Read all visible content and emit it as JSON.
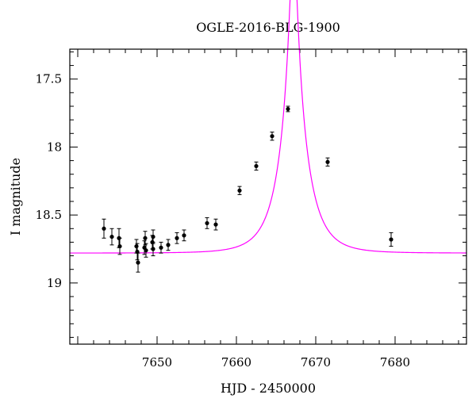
{
  "chart_data": {
    "type": "scatter",
    "title": "OGLE-2016-BLG-1900",
    "xlabel": "HJD - 2450000",
    "ylabel": "I magnitude",
    "xlim": [
      7639,
      7689
    ],
    "ylim": [
      19.45,
      17.28
    ],
    "y_inverted": true,
    "x_ticks": [
      7650,
      7660,
      7670,
      7680
    ],
    "y_ticks": [
      17.5,
      18,
      18.5,
      19
    ],
    "y_tick_labels": [
      "17.5",
      "18",
      "18.5",
      "19"
    ],
    "x_tick_labels": [
      "7650",
      "7660",
      "7670",
      "7680"
    ],
    "grid": false,
    "legend": "none",
    "colors": {
      "points": "#000000",
      "model": "#ff00ff"
    },
    "series": [
      {
        "kind": "points_with_errorbars",
        "points": [
          {
            "x": 7643.3,
            "y": 18.6,
            "err": 0.07
          },
          {
            "x": 7644.3,
            "y": 18.66,
            "err": 0.06
          },
          {
            "x": 7645.2,
            "y": 18.67,
            "err": 0.07
          },
          {
            "x": 7645.3,
            "y": 18.73,
            "err": 0.06
          },
          {
            "x": 7647.4,
            "y": 18.73,
            "err": 0.05
          },
          {
            "x": 7647.5,
            "y": 18.77,
            "err": 0.06
          },
          {
            "x": 7647.6,
            "y": 18.85,
            "err": 0.07
          },
          {
            "x": 7648.4,
            "y": 18.74,
            "err": 0.05
          },
          {
            "x": 7648.5,
            "y": 18.67,
            "err": 0.05
          },
          {
            "x": 7648.6,
            "y": 18.76,
            "err": 0.05
          },
          {
            "x": 7649.4,
            "y": 18.7,
            "err": 0.05
          },
          {
            "x": 7649.5,
            "y": 18.66,
            "err": 0.05
          },
          {
            "x": 7649.5,
            "y": 18.75,
            "err": 0.05
          },
          {
            "x": 7650.5,
            "y": 18.74,
            "err": 0.04
          },
          {
            "x": 7651.4,
            "y": 18.72,
            "err": 0.04
          },
          {
            "x": 7652.5,
            "y": 18.67,
            "err": 0.04
          },
          {
            "x": 7653.4,
            "y": 18.65,
            "err": 0.04
          },
          {
            "x": 7656.3,
            "y": 18.56,
            "err": 0.04
          },
          {
            "x": 7657.4,
            "y": 18.57,
            "err": 0.04
          },
          {
            "x": 7660.4,
            "y": 18.32,
            "err": 0.03
          },
          {
            "x": 7662.5,
            "y": 18.14,
            "err": 0.03
          },
          {
            "x": 7664.5,
            "y": 17.92,
            "err": 0.03
          },
          {
            "x": 7666.5,
            "y": 17.72,
            "err": 0.02
          },
          {
            "x": 7671.5,
            "y": 18.11,
            "err": 0.03
          },
          {
            "x": 7679.5,
            "y": 18.68,
            "err": 0.05
          }
        ]
      },
      {
        "kind": "model_curve",
        "model": {
          "t0": 7667.2,
          "tE": 3.2,
          "u0": 0.12,
          "base": 18.78
        }
      }
    ]
  }
}
